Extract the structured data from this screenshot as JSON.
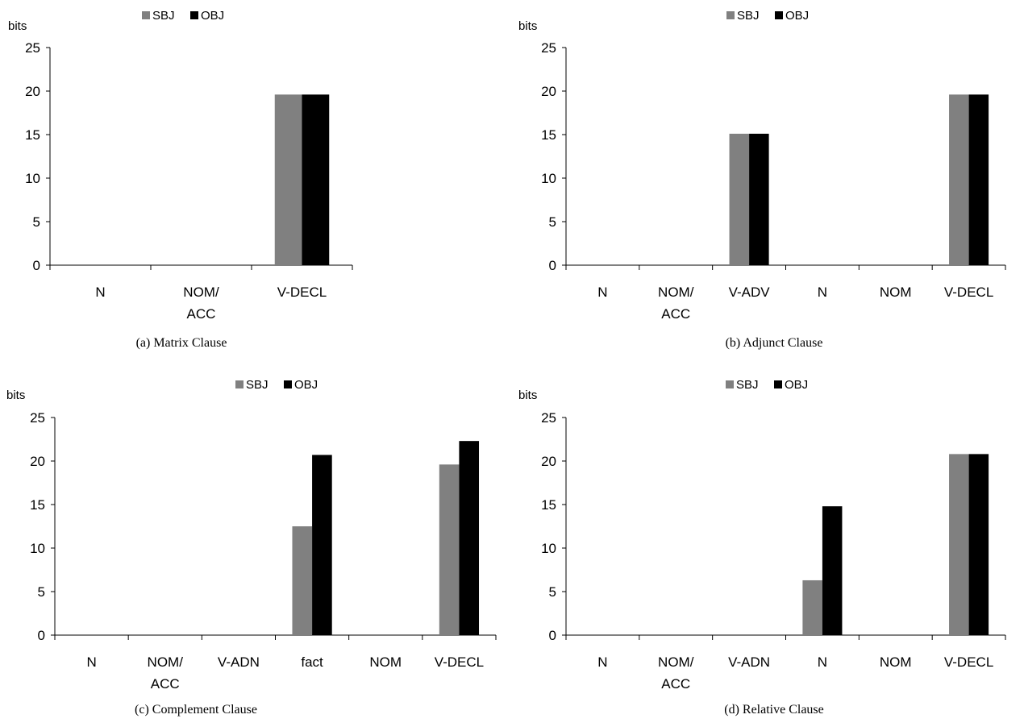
{
  "legend": {
    "sbj": "SBJ",
    "obj": "OBJ"
  },
  "ylabel": "bits",
  "colors": {
    "SBJ": "#808080",
    "OBJ": "#000000"
  },
  "chart_data": [
    {
      "type": "bar",
      "caption": "(a) Matrix Clause",
      "ylabel": "bits",
      "ylim": [
        0,
        25
      ],
      "yticks": [
        0,
        5,
        10,
        15,
        20,
        25
      ],
      "legend_position": "top",
      "categories": [
        [
          "N"
        ],
        [
          "NOM/",
          "ACC"
        ],
        [
          "V-DECL"
        ]
      ],
      "series": [
        {
          "name": "SBJ",
          "values": [
            0,
            0,
            19.6
          ]
        },
        {
          "name": "OBJ",
          "values": [
            0,
            0,
            19.6
          ]
        }
      ]
    },
    {
      "type": "bar",
      "caption": "(b) Adjunct Clause",
      "ylabel": "bits",
      "ylim": [
        0,
        25
      ],
      "yticks": [
        0,
        5,
        10,
        15,
        20,
        25
      ],
      "legend_position": "top",
      "categories": [
        [
          "N"
        ],
        [
          "NOM/",
          "ACC"
        ],
        [
          "V-ADV"
        ],
        [
          "N"
        ],
        [
          "NOM"
        ],
        [
          "V-DECL"
        ]
      ],
      "series": [
        {
          "name": "SBJ",
          "values": [
            0,
            0,
            15.1,
            0,
            0,
            19.6
          ]
        },
        {
          "name": "OBJ",
          "values": [
            0,
            0,
            15.1,
            0,
            0,
            19.6
          ]
        }
      ]
    },
    {
      "type": "bar",
      "caption": "(c) Complement Clause",
      "ylabel": "bits",
      "ylim": [
        0,
        25
      ],
      "yticks": [
        0,
        5,
        10,
        15,
        20,
        25
      ],
      "legend_position": "top",
      "categories": [
        [
          "N"
        ],
        [
          "NOM/",
          "ACC"
        ],
        [
          "V-ADN"
        ],
        [
          "fact"
        ],
        [
          "NOM"
        ],
        [
          "V-DECL"
        ]
      ],
      "series": [
        {
          "name": "SBJ",
          "values": [
            0,
            0,
            0,
            12.5,
            0,
            19.6
          ]
        },
        {
          "name": "OBJ",
          "values": [
            0,
            0,
            0,
            20.7,
            0,
            22.3
          ]
        }
      ]
    },
    {
      "type": "bar",
      "caption": "(d) Relative Clause",
      "ylabel": "bits",
      "ylim": [
        0,
        25
      ],
      "yticks": [
        0,
        5,
        10,
        15,
        20,
        25
      ],
      "legend_position": "top",
      "categories": [
        [
          "N"
        ],
        [
          "NOM/",
          "ACC"
        ],
        [
          "V-ADN"
        ],
        [
          "N"
        ],
        [
          "NOM"
        ],
        [
          "V-DECL"
        ]
      ],
      "series": [
        {
          "name": "SBJ",
          "values": [
            0,
            0,
            0,
            6.3,
            0,
            20.8
          ]
        },
        {
          "name": "OBJ",
          "values": [
            0,
            0,
            0,
            14.8,
            0,
            20.8
          ]
        }
      ]
    }
  ]
}
